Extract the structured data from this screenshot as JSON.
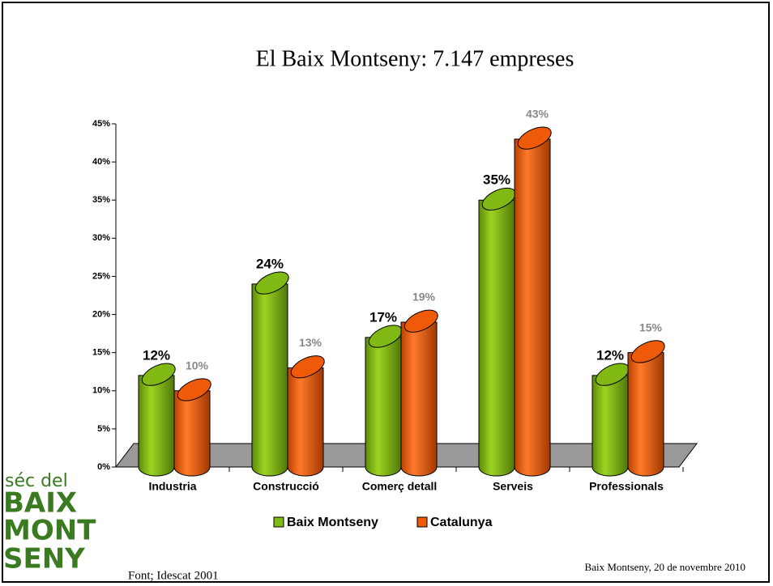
{
  "chart_data": {
    "type": "bar",
    "title": "El Baix Montseny: 7.147 empreses",
    "categories": [
      "Industria",
      "Construcció",
      "Comerç detall",
      "Serveis",
      "Professionals"
    ],
    "series": [
      {
        "name": "Baix Montseny",
        "color": "#80b814",
        "values": [
          12,
          24,
          17,
          35,
          12
        ],
        "value_labels": [
          "12%",
          "24%",
          "17%",
          "35%",
          "12%"
        ]
      },
      {
        "name": "Catalunya",
        "color": "#ee5a08",
        "values": [
          10,
          13,
          19,
          43,
          15
        ],
        "value_labels": [
          "10%",
          "13%",
          "19%",
          "43%",
          "15%"
        ]
      }
    ],
    "ylim": [
      0,
      45
    ],
    "yticks": [
      {
        "value": 0,
        "label": "0%"
      },
      {
        "value": 5,
        "label": "5%"
      },
      {
        "value": 10,
        "label": "10%"
      },
      {
        "value": 15,
        "label": "15%"
      },
      {
        "value": 20,
        "label": "20%"
      },
      {
        "value": 25,
        "label": "25%"
      },
      {
        "value": 30,
        "label": "30%"
      },
      {
        "value": 35,
        "label": "35%"
      },
      {
        "value": 40,
        "label": "40%"
      },
      {
        "value": 45,
        "label": "45%"
      }
    ],
    "legend": "bottom"
  },
  "footer": {
    "source": "Font; Idescat 2001",
    "date": "Baix Montseny, 20 de novembre 2010"
  },
  "logo": [
    "séc del",
    "BAIX",
    "MONT",
    "SENY"
  ]
}
